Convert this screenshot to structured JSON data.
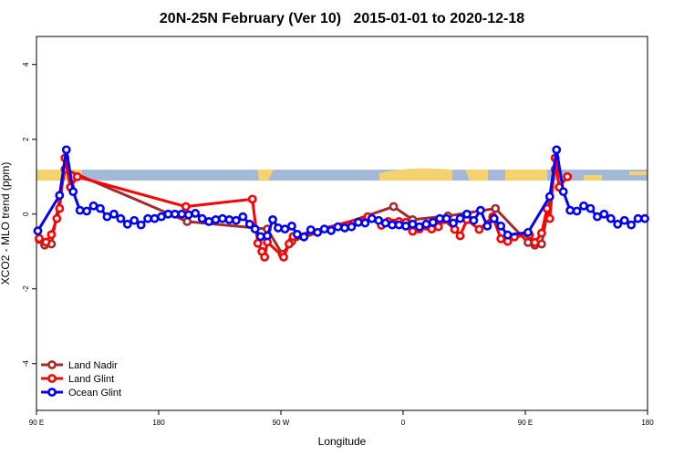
{
  "chart_data": {
    "type": "line",
    "title": "20N-25N February (Ver 10)   2015-01-01 to 2020-12-18",
    "x_label": "Longitude",
    "y_label": "XCO2 - MLO trend (ppm)",
    "xlim": [
      90,
      540
    ],
    "ylim": [
      -5.25,
      4.75
    ],
    "xticks": [
      {
        "value": 90,
        "label": "90 E"
      },
      {
        "value": 180,
        "label": "180"
      },
      {
        "value": 270,
        "label": "90 W"
      },
      {
        "value": 360,
        "label": "0"
      },
      {
        "value": 450,
        "label": "90 E"
      },
      {
        "value": 540,
        "label": "180"
      }
    ],
    "yticks": [
      -4,
      -2,
      0,
      2,
      4
    ],
    "legend_position": "bottom-left",
    "series": [
      {
        "name": "Land Nadir",
        "color": "#a52a2a",
        "x": [
          92,
          96,
          101,
          111,
          201,
          260,
          271,
          278,
          353,
          367,
          393,
          428,
          452,
          457,
          462,
          472
        ],
        "values": [
          -0.68,
          -0.83,
          -0.8,
          1.2,
          -0.2,
          -0.4,
          -1.07,
          -0.73,
          0.2,
          -0.15,
          -0.05,
          0.15,
          -0.76,
          -0.83,
          -0.8,
          1.2
        ]
      },
      {
        "name": "Land Glint",
        "color": "#ff0000",
        "x": [
          92,
          97,
          101,
          105,
          107,
          111,
          115,
          120,
          200,
          249,
          253,
          256,
          258,
          260,
          272,
          276,
          279,
          334,
          344,
          349,
          353,
          357,
          362,
          367,
          372,
          377,
          381,
          386,
          390,
          398,
          402,
          407,
          416,
          426,
          432,
          437,
          442,
          453,
          457,
          462,
          466,
          468,
          472,
          475,
          481
        ],
        "values": [
          -0.65,
          -0.75,
          -0.55,
          -0.12,
          0.15,
          1.5,
          0.72,
          1.0,
          0.2,
          0.4,
          -0.78,
          -1.0,
          -1.15,
          -0.75,
          -1.15,
          -0.8,
          -0.6,
          -0.07,
          -0.3,
          -0.2,
          -0.24,
          -0.2,
          -0.22,
          -0.46,
          -0.4,
          -0.32,
          -0.4,
          -0.34,
          -0.15,
          -0.41,
          -0.58,
          -0.15,
          -0.41,
          -0.07,
          -0.66,
          -0.73,
          -0.61,
          -0.56,
          -0.76,
          -0.51,
          0.15,
          -0.12,
          1.5,
          0.72,
          1.0
        ]
      },
      {
        "name": "Ocean Glint",
        "color": "#0000ff",
        "x": [
          91,
          107,
          112,
          117,
          122,
          127,
          132,
          137,
          142,
          147,
          152,
          157,
          162,
          167,
          172,
          177,
          182,
          187,
          192,
          197,
          202,
          207,
          212,
          217,
          222,
          227,
          232,
          237,
          242,
          247,
          251,
          255,
          260,
          264,
          268,
          273,
          278,
          282,
          287,
          292,
          297,
          302,
          307,
          312,
          317,
          322,
          327,
          332,
          337,
          342,
          347,
          352,
          357,
          362,
          367,
          372,
          377,
          382,
          387,
          392,
          397,
          402,
          407,
          412,
          417,
          422,
          427,
          432,
          437,
          452,
          468,
          473,
          478,
          483,
          488,
          493,
          498,
          503,
          508,
          513,
          518,
          523,
          528,
          533,
          538
        ],
        "values": [
          -0.45,
          0.5,
          1.72,
          0.6,
          0.1,
          0.08,
          0.22,
          0.15,
          -0.07,
          0.0,
          -0.12,
          -0.27,
          -0.17,
          -0.29,
          -0.12,
          -0.12,
          -0.07,
          0.0,
          0.0,
          0.0,
          -0.02,
          0.02,
          -0.12,
          -0.2,
          -0.15,
          -0.12,
          -0.15,
          -0.17,
          -0.07,
          -0.27,
          -0.4,
          -0.6,
          -0.58,
          -0.15,
          -0.37,
          -0.4,
          -0.32,
          -0.54,
          -0.61,
          -0.42,
          -0.49,
          -0.4,
          -0.44,
          -0.34,
          -0.37,
          -0.34,
          -0.22,
          -0.24,
          -0.12,
          -0.17,
          -0.24,
          -0.29,
          -0.29,
          -0.32,
          -0.27,
          -0.34,
          -0.27,
          -0.22,
          -0.12,
          -0.12,
          -0.24,
          -0.12,
          0.0,
          -0.17,
          0.1,
          -0.32,
          -0.12,
          -0.32,
          -0.56,
          -0.49,
          0.47,
          1.72,
          0.6,
          0.1,
          0.08,
          0.22,
          0.15,
          -0.07,
          0.0,
          -0.12,
          -0.27,
          -0.17,
          -0.29,
          -0.12,
          -0.12
        ]
      }
    ]
  }
}
